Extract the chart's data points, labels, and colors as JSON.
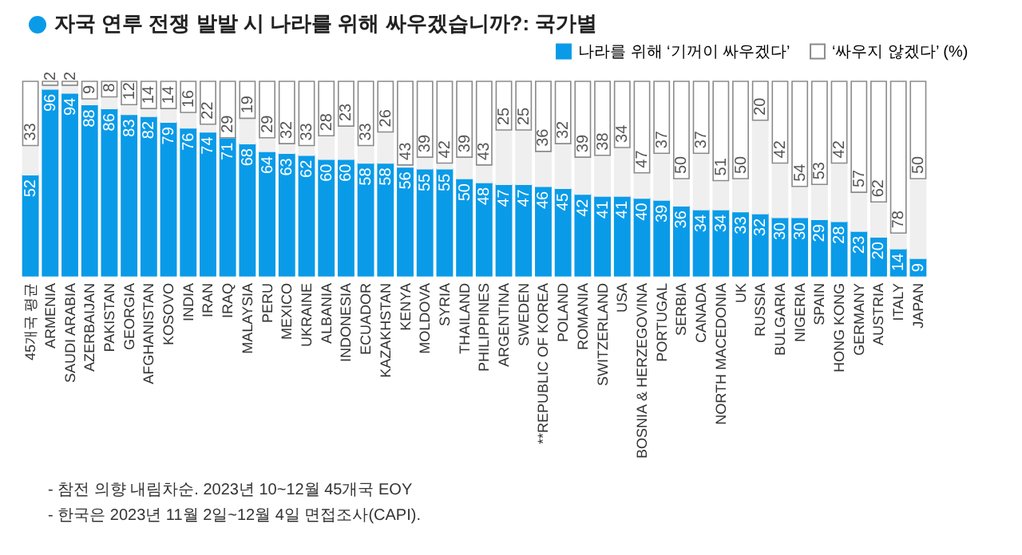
{
  "chart_data": {
    "type": "bar",
    "stacked": true,
    "title": "자국 연루 전쟁 발발 시 나라를 위해 싸우겠습니까?: 국가별",
    "categories": [
      "45개국 평균",
      "ARMENIA",
      "SAUDI ARABIA",
      "AZERBAIJAN",
      "PAKISTAN",
      "GEORGIA",
      "AFGHANISTAN",
      "KOSOVO",
      "INDIA",
      "IRAN",
      "IRAQ",
      "MALAYSIA",
      "PERU",
      "MEXICO",
      "UKRAINE",
      "ALBANIA",
      "INDONESIA",
      "ECUADOR",
      "KAZAKHSTAN",
      "KENYA",
      "MOLDOVA",
      "SYRIA",
      "THAILAND",
      "PHILIPPINES",
      "ARGENTINA",
      "SWEDEN",
      "**REPUBLIC OF KOREA",
      "POLAND",
      "ROMANIA",
      "SWITZERLAND",
      "USA",
      "BOSNIA & HERZEGOVINA",
      "PORTUGAL",
      "SERBIA",
      "CANADA",
      "NORTH MACEDONIA",
      "UK",
      "RUSSIA",
      "BULGARIA",
      "NIGERIA",
      "SPAIN",
      "HONG KONG",
      "GERMANY",
      "AUSTRIA",
      "ITALY",
      "JAPAN"
    ],
    "series": [
      {
        "name": "나라를 위해 ‘기꺼이 싸우겠다’",
        "color": "#0a9be8",
        "values": [
          52,
          96,
          94,
          88,
          86,
          83,
          82,
          79,
          76,
          74,
          71,
          68,
          64,
          63,
          62,
          60,
          60,
          58,
          58,
          56,
          55,
          55,
          50,
          48,
          47,
          47,
          46,
          45,
          42,
          41,
          41,
          40,
          39,
          36,
          34,
          34,
          33,
          32,
          30,
          30,
          29,
          28,
          23,
          20,
          14,
          9
        ],
        "value_labels": [
          "52",
          "96",
          "94",
          "88",
          "86",
          "83",
          "82",
          "79",
          "76",
          "74",
          "71",
          "68",
          "64",
          "63",
          "62",
          "60",
          "60",
          "58",
          "58",
          "56",
          "55",
          "55",
          "50",
          "48",
          "47",
          "47",
          "46",
          "45",
          "42",
          "41",
          "41",
          "40",
          "39",
          "36",
          "34",
          "34",
          "33",
          "32",
          "30",
          "30",
          "29",
          "28",
          "23",
          "20",
          "14",
          "9"
        ]
      },
      {
        "color": "#efefef",
        "values": [
          15,
          2,
          4,
          3,
          6,
          5,
          4,
          7,
          8,
          4,
          0,
          13,
          7,
          5,
          5,
          12,
          17,
          9,
          16,
          1,
          6,
          3,
          11,
          9,
          28,
          28,
          18,
          23,
          19,
          21,
          25,
          13,
          24,
          14,
          29,
          15,
          17,
          48,
          28,
          16,
          18,
          30,
          20,
          18,
          8,
          41
        ]
      },
      {
        "name": "‘싸우지 않겠다’ (%)",
        "color": "#ffffff",
        "values": [
          33,
          2,
          2,
          9,
          8,
          12,
          14,
          14,
          16,
          22,
          29,
          19,
          29,
          32,
          33,
          28,
          23,
          33,
          26,
          43,
          39,
          42,
          39,
          43,
          25,
          25,
          36,
          32,
          39,
          38,
          34,
          47,
          37,
          50,
          37,
          51,
          50,
          20,
          42,
          54,
          53,
          42,
          57,
          62,
          78,
          50
        ],
        "value_labels": [
          "33",
          "2",
          "2",
          "9",
          "8",
          "12",
          "14",
          "14",
          "16",
          "22",
          "29",
          "19",
          "29",
          "32",
          "33",
          "28",
          "23",
          "33",
          "26",
          "43",
          "39",
          "42",
          "39",
          "43",
          "25",
          "25",
          "36",
          "32",
          "39",
          "38",
          "34",
          "47",
          "37",
          "50",
          "37",
          "51",
          "50",
          "20",
          "42",
          "54",
          "53",
          "42",
          "57",
          "62",
          "78",
          "50"
        ]
      }
    ],
    "ylim": [
      0,
      100
    ],
    "tick_labels": "x",
    "legend": "top right",
    "annotations": [
      "- 참전 의향 내림차순. 2023년 10~12월 45개국 EOY",
      "- 한국은 2023년 11월 2일~12월 4일 면접조사(CAPI)."
    ]
  }
}
